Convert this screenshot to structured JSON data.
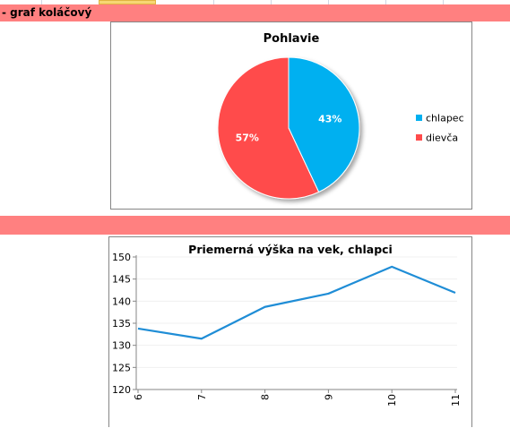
{
  "section1": {
    "title": "- graf koláčový"
  },
  "charts": [
    {
      "type": "pie",
      "title": "Pohlavie",
      "categories": [
        "chlapec",
        "dievča"
      ],
      "values": [
        43,
        57
      ],
      "labels": [
        "43%",
        "57%"
      ],
      "colors": [
        "#00b0f0",
        "#ff4b4b"
      ],
      "legend_position": "right"
    },
    {
      "type": "line",
      "title": "Priemerná výška na vek, chlapci",
      "x": [
        "6",
        "7",
        "8",
        "9",
        "10",
        "11"
      ],
      "values": [
        133.8,
        131.5,
        138.7,
        141.7,
        147.8,
        141.9
      ],
      "ylim": [
        120,
        150
      ],
      "yticks": [
        "120",
        "125",
        "130",
        "135",
        "140",
        "145",
        "150"
      ],
      "color": "#1f8dd6",
      "grid": true,
      "legend": false
    }
  ]
}
